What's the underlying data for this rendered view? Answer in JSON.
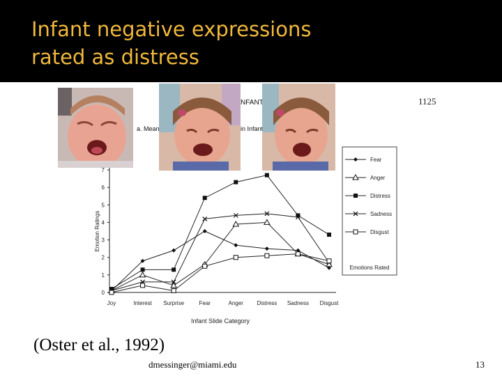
{
  "slide": {
    "title_line1": "Infant negative expressions",
    "title_line2": "rated  as distress",
    "citation": "(Oster et al., 1992)",
    "email": "dmessinger@miami.edu",
    "slide_number": "13",
    "page_number": "1125",
    "fragment_infant": "NFANT",
    "fragment_mean": "a. Mean",
    "fragment_infantF": "in Infant F",
    "title_color": "#f0b83c"
  },
  "chart_data": {
    "type": "line",
    "title": "",
    "xlabel": "Infant Slide Category",
    "ylabel": "Emotion Ratings",
    "legend_title": "Emotions Rated",
    "legend_position": "right",
    "categories": [
      "Joy",
      "Interest",
      "Surprise",
      "Fear",
      "Anger",
      "Distress",
      "Sadness",
      "Disgust"
    ],
    "x_tick_labels": [
      "Joy",
      "Interest",
      "Surprise",
      "Fear",
      "Anger",
      "Distress",
      "Sadness",
      "Disgust"
    ],
    "y_tick_labels": [
      "0",
      "1",
      "2",
      "3",
      "4",
      "5",
      "6",
      "7"
    ],
    "ylim": [
      0,
      7
    ],
    "grid": false,
    "series": [
      {
        "name": "Fear",
        "marker": "diamond",
        "values": [
          0.1,
          1.8,
          2.4,
          3.5,
          2.7,
          2.5,
          2.4,
          1.4
        ]
      },
      {
        "name": "Anger",
        "marker": "triangle",
        "values": [
          0.1,
          1.0,
          0.4,
          1.6,
          3.9,
          4.0,
          2.2,
          1.6
        ]
      },
      {
        "name": "Distress",
        "marker": "square-filled",
        "values": [
          0.2,
          1.3,
          1.3,
          5.4,
          6.3,
          6.7,
          4.4,
          3.3
        ]
      },
      {
        "name": "Sadness",
        "marker": "x",
        "values": [
          0.1,
          0.6,
          0.6,
          4.2,
          4.4,
          4.5,
          4.3,
          1.7
        ]
      },
      {
        "name": "Disgust",
        "marker": "square-open",
        "values": [
          0.0,
          0.4,
          0.1,
          1.5,
          2.0,
          2.1,
          2.2,
          1.8
        ]
      }
    ]
  }
}
